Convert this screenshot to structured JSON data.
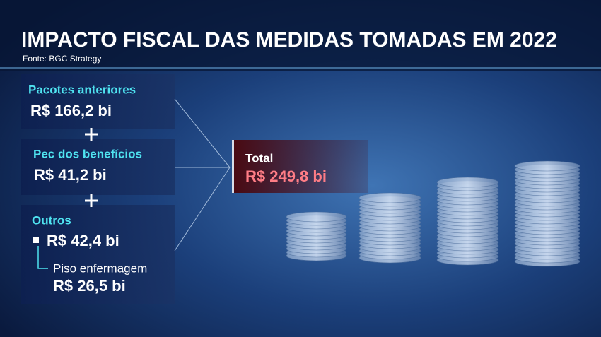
{
  "header": {
    "title": "IMPACTO FISCAL DAS MEDIDAS TOMADAS EM 2022",
    "source": "Fonte: BGC Strategy"
  },
  "items": [
    {
      "label": "Pacotes anteriores",
      "value": "R$ 166,2 bi"
    },
    {
      "label": "Pec dos benefícios",
      "value": "R$ 41,2 bi"
    },
    {
      "label": "Outros",
      "value": "R$ 42,4 bi",
      "sub": {
        "label": "Piso enfermagem",
        "value": "R$ 26,5 bi"
      }
    }
  ],
  "total": {
    "label": "Total",
    "value": "R$ 249,8 bi"
  }
}
